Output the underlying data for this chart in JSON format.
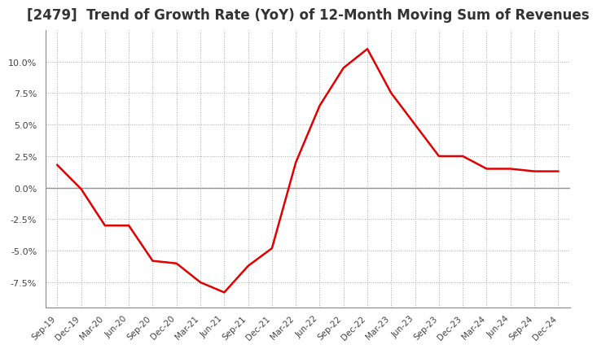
{
  "title": "[2479]  Trend of Growth Rate (YoY) of 12-Month Moving Sum of Revenues",
  "title_fontsize": 12,
  "line_color": "#e00000",
  "background_color": "#ffffff",
  "ylim": [
    -9.5,
    12.5
  ],
  "yticks": [
    -7.5,
    -5.0,
    -2.5,
    0.0,
    2.5,
    5.0,
    7.5,
    10.0
  ],
  "x_labels": [
    "Sep-19",
    "Dec-19",
    "Mar-20",
    "Jun-20",
    "Sep-20",
    "Dec-20",
    "Mar-21",
    "Jun-21",
    "Sep-21",
    "Dec-21",
    "Mar-22",
    "Jun-22",
    "Sep-22",
    "Dec-22",
    "Mar-23",
    "Jun-23",
    "Sep-23",
    "Dec-23",
    "Mar-24",
    "Jun-24",
    "Sep-24",
    "Dec-24"
  ],
  "y_values": [
    1.8,
    -0.1,
    -3.0,
    -3.0,
    -5.8,
    -6.0,
    -7.5,
    -8.3,
    -6.2,
    -4.8,
    2.0,
    6.5,
    9.5,
    11.0,
    7.5,
    5.0,
    2.5,
    2.5,
    1.5,
    1.5,
    1.3,
    1.3
  ]
}
